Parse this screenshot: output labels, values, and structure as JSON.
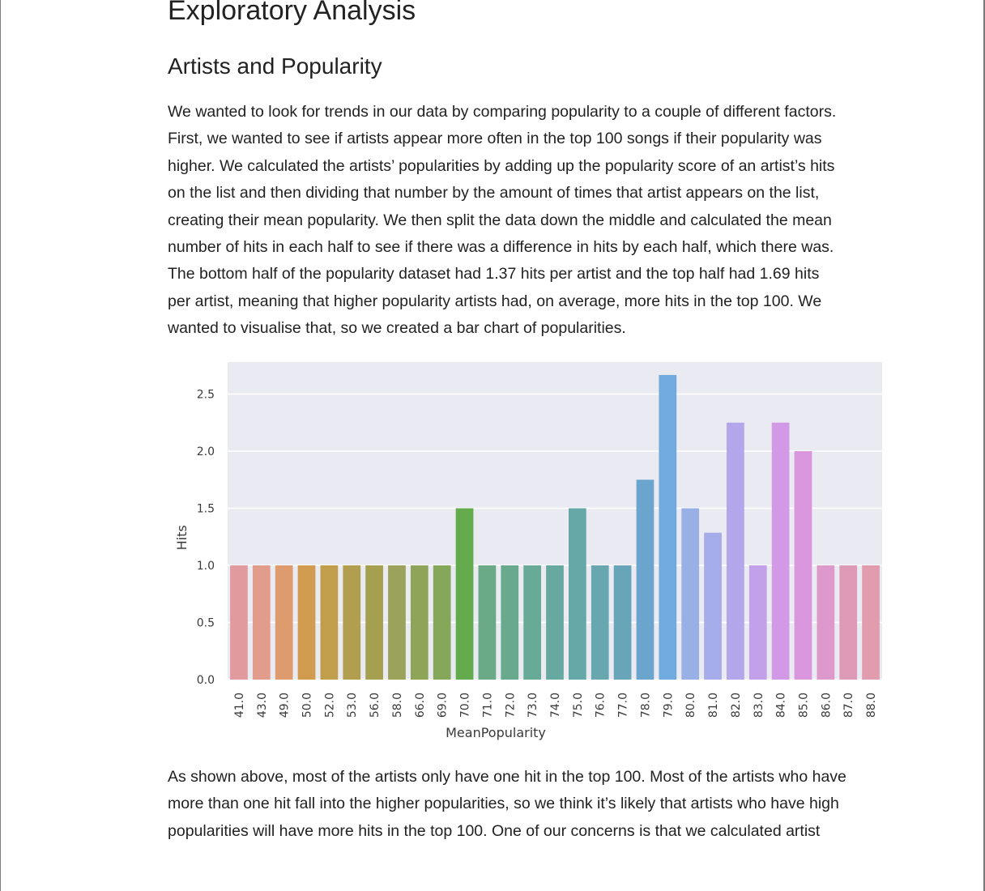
{
  "document": {
    "heading": "Exploratory Analysis",
    "subheading": "Artists and Popularity",
    "paragraph1_lines": [
      "We wanted to look for trends in our data by comparing popularity to a couple of different factors.",
      "First, we wanted to see if artists appear more often in the top 100 songs if their popularity was",
      "higher. We calculated the artists’ popularities by adding up the popularity score of an artist’s hits",
      "on the list and then dividing that number by the amount of times that artist appears on the list,",
      "creating their mean popularity. We then split the data down the middle and calculated the mean",
      "number of hits in each half to see if there was a difference in hits by each half, which there was.",
      "The bottom half of the popularity dataset had 1.37 hits per artist and the top half had 1.69 hits",
      "per artist, meaning that higher popularity artists had, on average, more hits in the top 100. We",
      "wanted to visualise that, so we created a bar chart of popularities."
    ],
    "paragraph2_lines": [
      "As shown above, most of the artists only have one hit in the top 100. Most of the artists who have",
      "more than one hit fall into the higher popularities, so we think it’s likely that artists who have high",
      "popularities will have more hits in the top 100. One of our concerns is that we calculated artist"
    ]
  },
  "chart_data": {
    "type": "bar",
    "title": "",
    "xlabel": "MeanPopularity",
    "ylabel": "Hits",
    "ylim": [
      0,
      2.85
    ],
    "yticks": [
      "0.0",
      "0.5",
      "1.0",
      "1.5",
      "2.0",
      "2.5"
    ],
    "grid": true,
    "legend": "none",
    "categories": [
      "41.0",
      "43.0",
      "49.0",
      "50.0",
      "52.0",
      "53.0",
      "56.0",
      "58.0",
      "66.0",
      "69.0",
      "70.0",
      "71.0",
      "72.0",
      "73.0",
      "74.0",
      "75.0",
      "76.0",
      "77.0",
      "78.0",
      "79.0",
      "80.0",
      "81.0",
      "82.0",
      "83.0",
      "84.0",
      "85.0",
      "86.0",
      "87.0",
      "88.0"
    ],
    "values": [
      1.0,
      1.0,
      1.0,
      1.0,
      1.0,
      1.0,
      1.0,
      1.0,
      1.0,
      1.0,
      1.5,
      1.0,
      1.0,
      1.0,
      1.0,
      1.5,
      1.0,
      1.0,
      1.75,
      2.667,
      1.5,
      1.286,
      2.25,
      1.0,
      2.25,
      2.0,
      1.0,
      1.0,
      1.0
    ],
    "colors": [
      "#e19a9e",
      "#e19c8c",
      "#de9c6e",
      "#d19b50",
      "#c19e4c",
      "#b29e4f",
      "#a59f50",
      "#9aa25b",
      "#8ea559",
      "#85a75a",
      "#63ab4d",
      "#6aaa86",
      "#69aa8f",
      "#68aa98",
      "#67a9a0",
      "#66a8a7",
      "#68a6b0",
      "#69a5b8",
      "#6ba5ce",
      "#71aade",
      "#98b0e6",
      "#a6abe9",
      "#b3a6ea",
      "#c3a1ea",
      "#d299e6",
      "#db97de",
      "#de99cc",
      "#dd9ab6",
      "#e19cae"
    ],
    "plot_background": "#eaeaf2",
    "grid_color": "#ffffff"
  }
}
